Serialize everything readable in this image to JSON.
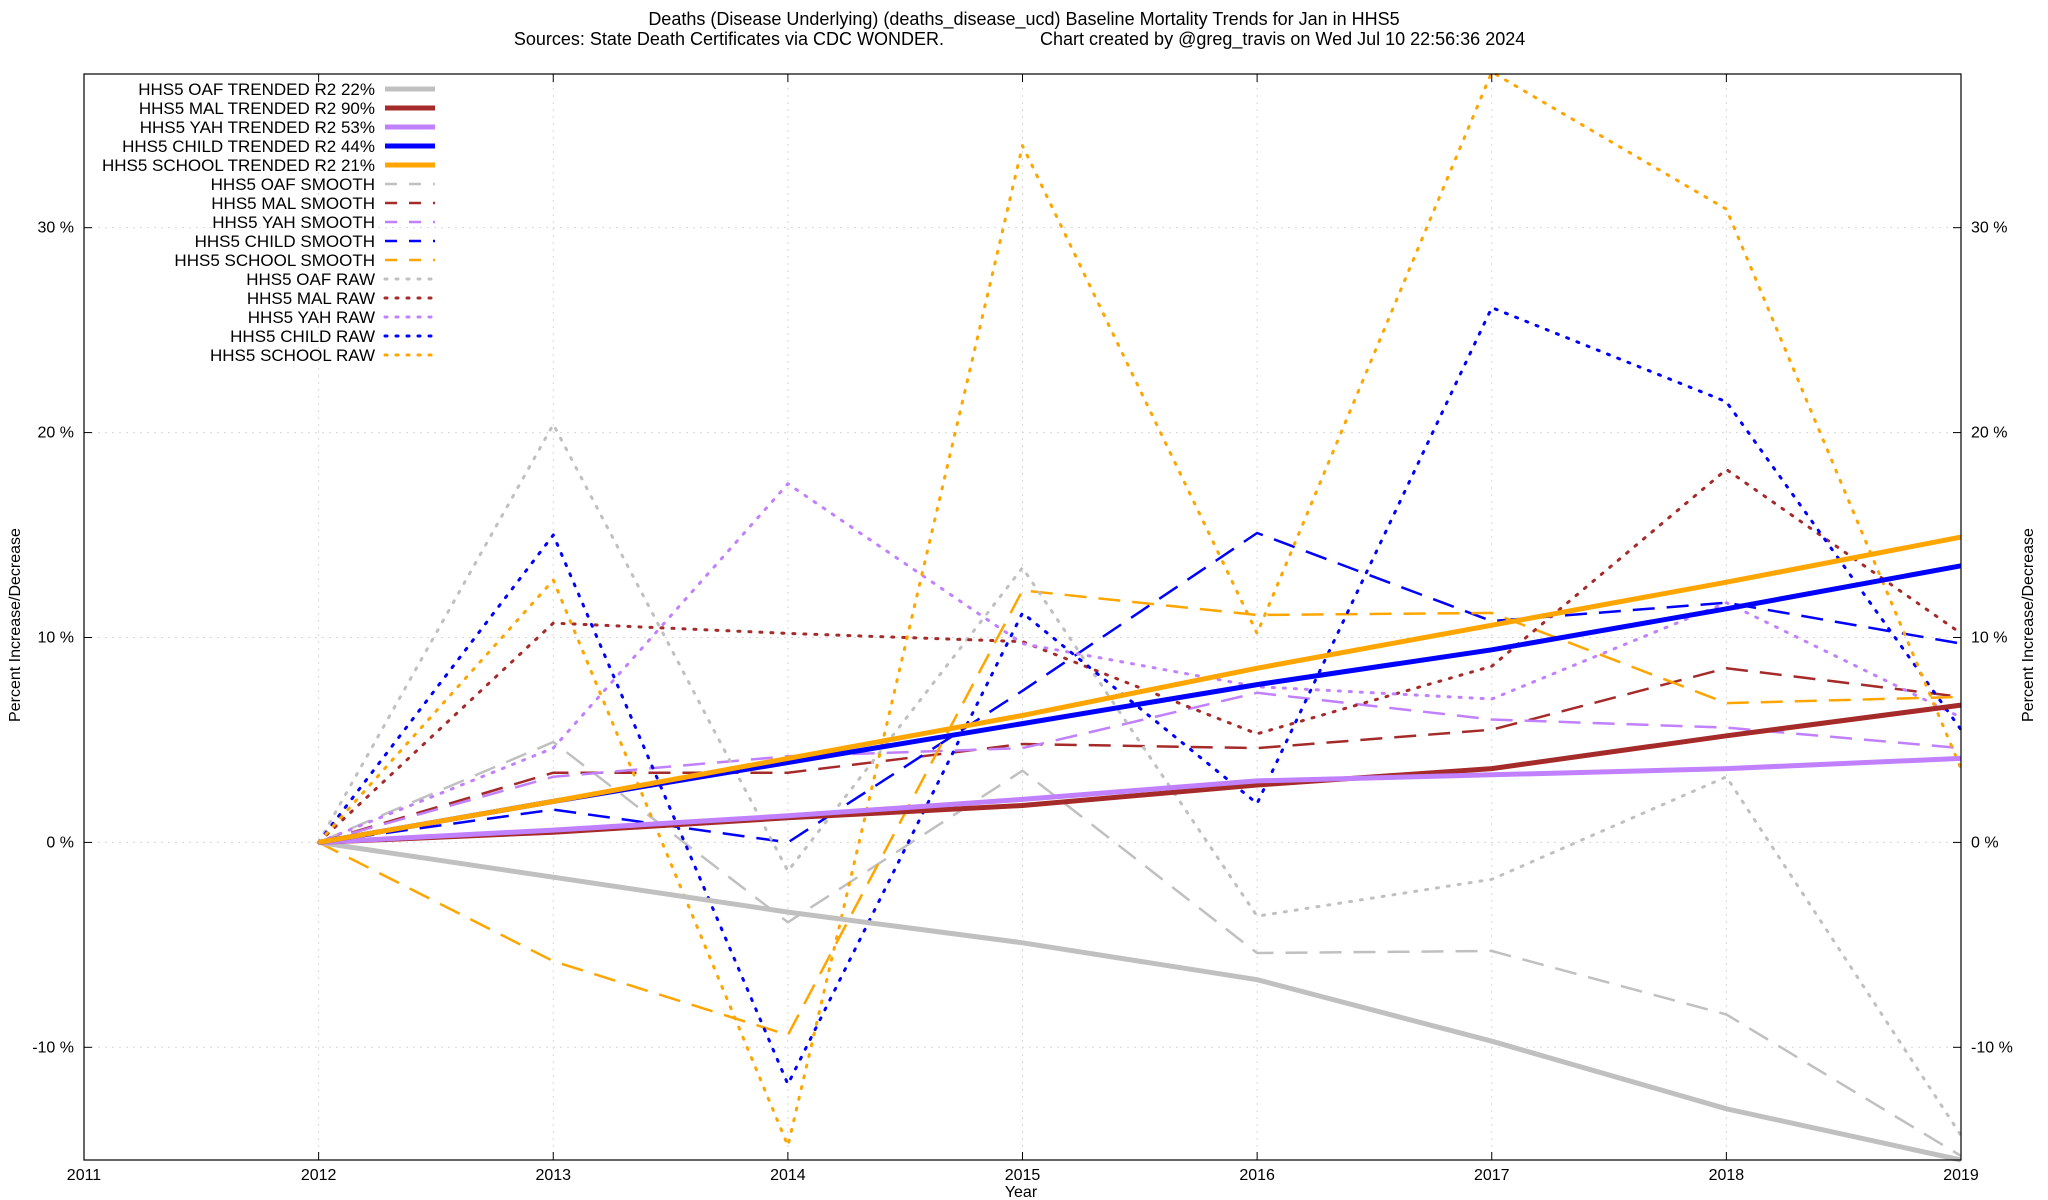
{
  "chart_data": {
    "type": "line",
    "title": "Deaths (Disease Underlying) (deaths_disease_ucd)  Baseline Mortality Trends for Jan in HHS5",
    "subtitle_left": "Sources: State Death Certificates via CDC WONDER.",
    "subtitle_right": "Chart created by @greg_travis on Wed Jul 10 22:56:36 2024",
    "xlabel": "Year",
    "ylabel_left": "Percent Increase/Decrease",
    "ylabel_right": "Percent Increase/Decrease",
    "xlim": [
      2011,
      2019
    ],
    "ylim": [
      -15.5,
      37.5
    ],
    "x_ticks": [
      "2011",
      "2012",
      "2013",
      "2014",
      "2015",
      "2016",
      "2017",
      "2018",
      "2019"
    ],
    "y_ticks": [
      {
        "value": -10,
        "label": "-10 %"
      },
      {
        "value": 0,
        "label": "0 %"
      },
      {
        "value": 10,
        "label": "10 %"
      },
      {
        "value": 20,
        "label": "20 %"
      },
      {
        "value": 30,
        "label": "30 %"
      }
    ],
    "grid": true,
    "legend_position": "top-left",
    "x": [
      2012,
      2013,
      2014,
      2015,
      2016,
      2017,
      2018,
      2019
    ],
    "series": [
      {
        "name": "HHS5 OAF TRENDED R2  22%",
        "style": "solid",
        "color": "#c0c0c0",
        "values": [
          0,
          -1.7,
          -3.4,
          -4.9,
          -6.7,
          -9.7,
          -13.0,
          -15.5
        ]
      },
      {
        "name": "HHS5 MAL TRENDED R2  90%",
        "style": "solid",
        "color": "#a52a2a",
        "values": [
          0,
          0.5,
          1.2,
          1.8,
          2.8,
          3.6,
          5.2,
          6.7
        ]
      },
      {
        "name": "HHS5 YAH TRENDED R2  53%",
        "style": "solid",
        "color": "#c080ff",
        "values": [
          0,
          0.6,
          1.3,
          2.1,
          3.0,
          3.3,
          3.6,
          4.1
        ]
      },
      {
        "name": "HHS5 CHILD TRENDED R2  44%",
        "style": "solid",
        "color": "#0000ff",
        "values": [
          0,
          2.0,
          3.9,
          5.8,
          7.7,
          9.4,
          11.4,
          13.5
        ]
      },
      {
        "name": "HHS5 SCHOOL TRENDED R2  21%",
        "style": "solid",
        "color": "#ffa500",
        "values": [
          0,
          2.0,
          4.1,
          6.2,
          8.5,
          10.6,
          12.7,
          14.9
        ]
      },
      {
        "name": "HHS5 OAF SMOOTH",
        "style": "dashed",
        "color": "#c0c0c0",
        "values": [
          0,
          4.9,
          -3.9,
          3.5,
          -5.4,
          -5.3,
          -8.4,
          -15.3
        ]
      },
      {
        "name": "HHS5 MAL SMOOTH",
        "style": "dashed",
        "color": "#a52a2a",
        "values": [
          0,
          3.4,
          3.4,
          4.8,
          4.6,
          5.5,
          8.5,
          7.1
        ]
      },
      {
        "name": "HHS5 YAH SMOOTH",
        "style": "dashed",
        "color": "#c080ff",
        "values": [
          0,
          3.2,
          4.2,
          4.6,
          7.3,
          6.0,
          5.6,
          4.6
        ]
      },
      {
        "name": "HHS5 CHILD SMOOTH",
        "style": "dashed",
        "color": "#0000ff",
        "values": [
          0,
          1.6,
          0.0,
          7.4,
          15.1,
          10.8,
          11.7,
          9.7
        ]
      },
      {
        "name": "HHS5 SCHOOL SMOOTH",
        "style": "dashed",
        "color": "#ffa500",
        "values": [
          0,
          -5.8,
          -9.4,
          12.3,
          11.1,
          11.2,
          6.8,
          7.1
        ]
      },
      {
        "name": "HHS5 OAF RAW",
        "style": "dotted",
        "color": "#c0c0c0",
        "values": [
          0,
          20.4,
          -1.4,
          13.4,
          -3.6,
          -1.8,
          3.2,
          -14.3
        ]
      },
      {
        "name": "HHS5 MAL RAW",
        "style": "dotted",
        "color": "#a52a2a",
        "values": [
          0,
          10.7,
          10.2,
          9.8,
          5.3,
          8.6,
          18.2,
          10.2
        ]
      },
      {
        "name": "HHS5 YAH RAW",
        "style": "dotted",
        "color": "#c080ff",
        "values": [
          0,
          4.6,
          17.5,
          9.7,
          7.6,
          7.0,
          11.7,
          6.1
        ]
      },
      {
        "name": "HHS5 CHILD RAW",
        "style": "dotted",
        "color": "#0000ff",
        "values": [
          0,
          15.0,
          -11.8,
          11.2,
          1.9,
          26.1,
          21.5,
          5.5
        ]
      },
      {
        "name": "HHS5 SCHOOL RAW",
        "style": "dotted",
        "color": "#ffa500",
        "values": [
          0,
          12.8,
          -14.8,
          34.0,
          10.2,
          37.6,
          30.9,
          3.6
        ]
      }
    ]
  }
}
